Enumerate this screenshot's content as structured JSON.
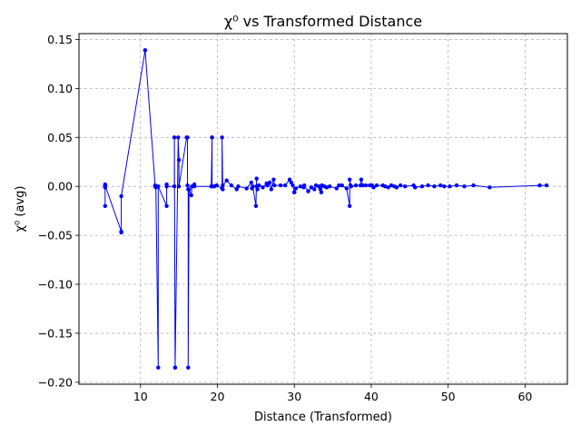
{
  "chart_data": {
    "type": "line",
    "title": "χ⁰ vs Transformed Distance",
    "xlabel": "Distance (Transformed)",
    "ylabel": "χ⁰ (avg)",
    "xlim": [
      2,
      65.5
    ],
    "ylim": [
      -0.202,
      0.156
    ],
    "xticks": [
      10,
      20,
      30,
      40,
      50,
      60
    ],
    "yticks": [
      -0.2,
      -0.15,
      -0.1,
      -0.05,
      0.0,
      0.05,
      0.1,
      0.15
    ],
    "xtick_labels": [
      "10",
      "20",
      "30",
      "40",
      "50",
      "60"
    ],
    "ytick_labels": [
      "−0.20",
      "−0.15",
      "−0.10",
      "−0.05",
      "0.00",
      "0.05",
      "0.10",
      "0.15"
    ],
    "grid": true,
    "line_color": "#0000ff",
    "series": [
      {
        "x": [
          5.4,
          5.4,
          5.4,
          5.4,
          7.5,
          7.5,
          7.5,
          10.6,
          10.6,
          11.9,
          11.9,
          12.0,
          12.3,
          12.3,
          13.4,
          13.4,
          13.4,
          14.4,
          14.4,
          14.5,
          14.5,
          14.9,
          15.0,
          15.0,
          16.0,
          16.1,
          16.1,
          16.2,
          16.2,
          16.3,
          16.6,
          16.7,
          17.0,
          17.0,
          19.2,
          19.3,
          19.3,
          19.3,
          19.6,
          19.9,
          20.6,
          20.6,
          20.7,
          20.7,
          21.2,
          21.8,
          22.5,
          22.7,
          23.8,
          24.4,
          24.5,
          24.6,
          25.0,
          25.1,
          25.1,
          25.2,
          25.4,
          25.9,
          26.4,
          26.5,
          26.8,
          27.0,
          27.3,
          27.4,
          28.2,
          28.8,
          29.4,
          29.6,
          29.8,
          30.0,
          30.0,
          30.2,
          30.8,
          31.2,
          31.3,
          31.8,
          32.2,
          32.6,
          32.8,
          33.2,
          33.4,
          33.5,
          33.6,
          33.9,
          34.2,
          34.6,
          35.5,
          35.8,
          36.2,
          36.8,
          37.2,
          37.2,
          37.3,
          37.4,
          38.0,
          38.6,
          38.7,
          38.9,
          39.3,
          39.8,
          40.1,
          40.3,
          40.7,
          41.5,
          41.8,
          42.2,
          42.6,
          43.0,
          43.3,
          43.8,
          44.4,
          45.5,
          45.7,
          46.6,
          47.4,
          48.2,
          49.0,
          49.5,
          50.2,
          51.1,
          52.1,
          53.3,
          55.4,
          61.9,
          62.8
        ],
        "y": [
          -0.02,
          0.002,
          -0.001,
          0.001,
          -0.046,
          -0.047,
          -0.01,
          0.139,
          0.139,
          0.001,
          0.0,
          -0.001,
          -0.185,
          0.0,
          -0.02,
          0.002,
          0.0,
          0.0,
          0.05,
          -0.185,
          -0.185,
          0.05,
          0.027,
          0.0,
          0.05,
          0.05,
          0.001,
          -0.003,
          -0.185,
          -0.003,
          -0.009,
          0.0,
          0.002,
          0.0,
          0.0,
          0.05,
          0.05,
          0.0,
          0.0,
          0.001,
          -0.002,
          0.05,
          -0.003,
          0.001,
          0.006,
          0.001,
          -0.003,
          0.0,
          -0.002,
          0.004,
          -0.002,
          0.0,
          -0.02,
          0.008,
          0.0,
          -0.003,
          0.001,
          -0.001,
          0.003,
          0.001,
          0.004,
          -0.003,
          0.007,
          0.001,
          0.001,
          0.001,
          0.007,
          0.004,
          0.001,
          -0.006,
          -0.006,
          -0.002,
          0.0,
          -0.001,
          0.001,
          -0.005,
          -0.001,
          -0.003,
          0.001,
          0.0,
          -0.003,
          -0.006,
          0.001,
          0.0,
          -0.001,
          0.0,
          -0.002,
          0.001,
          0.001,
          -0.002,
          -0.02,
          0.007,
          0.001,
          0.0,
          0.001,
          0.001,
          0.007,
          0.001,
          0.001,
          0.001,
          0.001,
          -0.001,
          0.001,
          0.001,
          0.0,
          -0.001,
          0.001,
          0.0,
          -0.001,
          0.001,
          0.0,
          0.001,
          -0.001,
          0.0,
          0.001,
          0.0,
          0.001,
          0.0,
          0.0,
          0.001,
          0.0,
          0.001,
          -0.001,
          0.001,
          0.001
        ]
      }
    ]
  }
}
